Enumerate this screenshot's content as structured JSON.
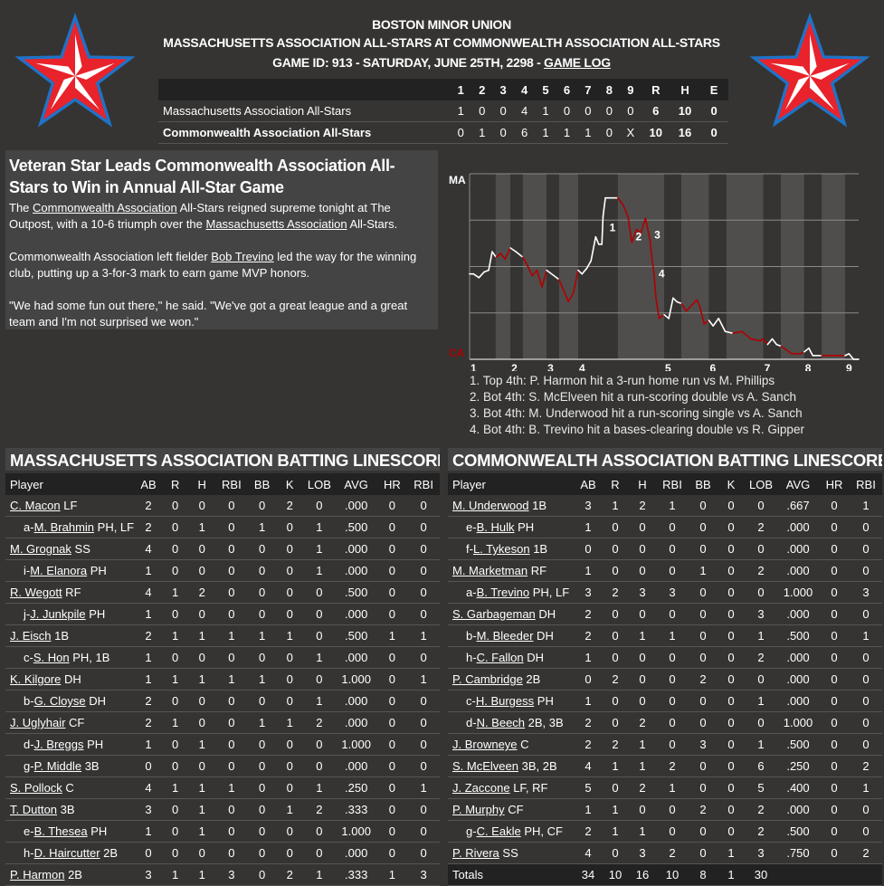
{
  "header": {
    "league": "BOSTON MINOR UNION",
    "matchup": "MASSACHUSETTS ASSOCIATION ALL-STARS AT COMMONWEALTH ASSOCIATION ALL-STARS",
    "game_info": "GAME ID: 913 - SATURDAY, JUNE 25TH, 2298 - ",
    "game_log_link": "GAME LOG"
  },
  "logo_colors": {
    "outline": "#1e73c8",
    "fill": "#e8232b",
    "highlight": "#ffffff"
  },
  "linescore": {
    "columns": [
      "1",
      "2",
      "3",
      "4",
      "5",
      "6",
      "7",
      "8",
      "9",
      "R",
      "H",
      "E"
    ],
    "rows": [
      {
        "team": "Massachusetts Association All-Stars",
        "innings": [
          "1",
          "0",
          "0",
          "4",
          "1",
          "0",
          "0",
          "0",
          "0"
        ],
        "r": "6",
        "h": "10",
        "e": "0"
      },
      {
        "team": "Commonwealth Association All-Stars",
        "innings": [
          "0",
          "1",
          "0",
          "6",
          "1",
          "1",
          "1",
          "0",
          "X"
        ],
        "r": "10",
        "h": "16",
        "e": "0"
      }
    ]
  },
  "article": {
    "headline": "Veteran Star Leads Commonwealth Association All-Stars to Win in Annual All-Star Game",
    "p1_a": "The ",
    "p1_link1": "Commonwealth Association",
    "p1_b": " All-Stars reigned supreme tonight at The Outpost, with a 10-6 triumph over the ",
    "p1_link2": "Massachusetts Association",
    "p1_c": " All-Stars.",
    "p2_a": "Commonwealth Association left fielder ",
    "p2_link": "Bob Trevino",
    "p2_b": " led the way for the winning club, putting up a 3-for-3 mark to earn game MVP honors.",
    "p3": "\"We had some fun out there,\" he said. \"We've got a great league and a great team and I'm not surprised we won.\""
  },
  "chart_data": {
    "type": "line",
    "top_label": "MA",
    "bottom_label": "CA",
    "colors": {
      "top_half": "#ffffff",
      "bottom_half": "#b00000",
      "top_label": "#ffffff",
      "bottom_label": "#b00000"
    },
    "ylim": [
      0,
      1
    ],
    "grid": true,
    "half_inning_boundaries": [
      0,
      6.7,
      10.5,
      13.7,
      19.8,
      23,
      27.9,
      38.1,
      50,
      54.4,
      61.5,
      66,
      75.5,
      80,
      86,
      90.5,
      96.5,
      100
    ],
    "inning_ticks": [
      {
        "label": "1",
        "x": 0
      },
      {
        "label": "2",
        "x": 10.5
      },
      {
        "label": "3",
        "x": 19.8
      },
      {
        "label": "4",
        "x": 27.9
      },
      {
        "label": "5",
        "x": 50
      },
      {
        "label": "6",
        "x": 61.5
      },
      {
        "label": "7",
        "x": 75.5
      },
      {
        "label": "8",
        "x": 86
      },
      {
        "label": "9",
        "x": 96.5
      }
    ],
    "points": [
      [
        0,
        0.46
      ],
      [
        1,
        0.46
      ],
      [
        2.4,
        0.44
      ],
      [
        3.7,
        0.47
      ],
      [
        4.9,
        0.48
      ],
      [
        5.8,
        0.58
      ],
      [
        6.8,
        0.55
      ],
      [
        8,
        0.57
      ],
      [
        9.1,
        0.54
      ],
      [
        10.5,
        0.6
      ],
      [
        11.9,
        0.58
      ],
      [
        13.7,
        0.55
      ],
      [
        15,
        0.5
      ],
      [
        16.1,
        0.45
      ],
      [
        17.3,
        0.48
      ],
      [
        18.6,
        0.39
      ],
      [
        19.8,
        0.48
      ],
      [
        23,
        0.43
      ],
      [
        25.4,
        0.31
      ],
      [
        26.7,
        0.36
      ],
      [
        27.9,
        0.48
      ],
      [
        28.9,
        0.46
      ],
      [
        30.1,
        0.49
      ],
      [
        31.2,
        0.53
      ],
      [
        32.4,
        0.66
      ],
      [
        33.2,
        0.62
      ],
      [
        34,
        0.62
      ],
      [
        34.3,
        0.77
      ],
      [
        34.9,
        0.87
      ],
      [
        36.3,
        0.87
      ],
      [
        38.1,
        0.87
      ],
      [
        39.5,
        0.83
      ],
      [
        40.7,
        0.77
      ],
      [
        41.7,
        0.63
      ],
      [
        42.9,
        0.7
      ],
      [
        44,
        0.68
      ],
      [
        45.2,
        0.76
      ],
      [
        46.4,
        0.64
      ],
      [
        46.7,
        0.57
      ],
      [
        47.4,
        0.46
      ],
      [
        47.9,
        0.33
      ],
      [
        48.7,
        0.22
      ],
      [
        50,
        0.24
      ],
      [
        51.2,
        0.22
      ],
      [
        52.3,
        0.33
      ],
      [
        53.3,
        0.31
      ],
      [
        54.5,
        0.3
      ],
      [
        55.7,
        0.26
      ],
      [
        58.4,
        0.32
      ],
      [
        59.1,
        0.29
      ],
      [
        60.3,
        0.19
      ],
      [
        61.5,
        0.21
      ],
      [
        62.6,
        0.18
      ],
      [
        64,
        0.22
      ],
      [
        65.7,
        0.15
      ],
      [
        67.7,
        0.14
      ],
      [
        70,
        0.15
      ],
      [
        72.3,
        0.11
      ],
      [
        74.7,
        0.1
      ],
      [
        75.4,
        0.11
      ],
      [
        76.6,
        0.08
      ],
      [
        77.8,
        0.11
      ],
      [
        78.9,
        0.08
      ],
      [
        80.1,
        0.07
      ],
      [
        82.8,
        0.03
      ],
      [
        85.1,
        0.03
      ],
      [
        86,
        0.04
      ],
      [
        87.2,
        0.06
      ],
      [
        88.2,
        0.02
      ],
      [
        90.5,
        0.02
      ],
      [
        96.5,
        0.02
      ],
      [
        97.5,
        0.03
      ],
      [
        98.7,
        0.0
      ],
      [
        100,
        0.0
      ]
    ],
    "annotations": [
      {
        "label": "1",
        "x": 35.5,
        "y": 0.71
      },
      {
        "label": "2",
        "x": 42.2,
        "y": 0.66
      },
      {
        "label": "3",
        "x": 47,
        "y": 0.67
      },
      {
        "label": "4",
        "x": 48.1,
        "y": 0.46
      }
    ],
    "notes": [
      "1. Top 4th: P. Harmon hit a 3-run home run vs M. Phillips",
      "2. Bot 4th: S. McElveen hit a run-scoring double vs A. Sanch",
      "3. Bot 4th: M. Underwood hit a run-scoring single vs A. Sanch",
      "4. Bot 4th: B. Trevino hit a bases-clearing double vs R. Gipper"
    ]
  },
  "batting": {
    "columns": [
      "Player",
      "AB",
      "R",
      "H",
      "RBI",
      "BB",
      "K",
      "LOB",
      "AVG",
      "HR",
      "RBI"
    ],
    "away": {
      "title": "MASSACHUSETTS ASSOCIATION BATTING LINESCORE",
      "rows": [
        {
          "prefix": "",
          "name": "C. Macon",
          "pos": "LF",
          "stats": [
            "2",
            "0",
            "0",
            "0",
            "0",
            "2",
            "0",
            ".000",
            "0",
            "0"
          ]
        },
        {
          "prefix": "a-",
          "name": "M. Brahmin",
          "pos": "PH, LF",
          "stats": [
            "2",
            "0",
            "1",
            "0",
            "1",
            "0",
            "1",
            ".500",
            "0",
            "0"
          ]
        },
        {
          "prefix": "",
          "name": "M. Grognak",
          "pos": "SS",
          "stats": [
            "4",
            "0",
            "0",
            "0",
            "0",
            "0",
            "1",
            ".000",
            "0",
            "0"
          ]
        },
        {
          "prefix": "i-",
          "name": "M. Elanora",
          "pos": "PH",
          "stats": [
            "1",
            "0",
            "0",
            "0",
            "0",
            "0",
            "1",
            ".000",
            "0",
            "0"
          ]
        },
        {
          "prefix": "",
          "name": "R. Wegott",
          "pos": "RF",
          "stats": [
            "4",
            "1",
            "2",
            "0",
            "0",
            "0",
            "0",
            ".500",
            "0",
            "0"
          ]
        },
        {
          "prefix": "j-",
          "name": "J. Junkpile",
          "pos": "PH",
          "stats": [
            "1",
            "0",
            "0",
            "0",
            "0",
            "0",
            "0",
            ".000",
            "0",
            "0"
          ]
        },
        {
          "prefix": "",
          "name": "J. Eisch",
          "pos": "1B",
          "stats": [
            "2",
            "1",
            "1",
            "1",
            "1",
            "1",
            "0",
            ".500",
            "1",
            "1"
          ]
        },
        {
          "prefix": "c-",
          "name": "S. Hon",
          "pos": "PH, 1B",
          "stats": [
            "1",
            "0",
            "0",
            "0",
            "0",
            "0",
            "1",
            ".000",
            "0",
            "0"
          ]
        },
        {
          "prefix": "",
          "name": "K. Kilgore",
          "pos": "DH",
          "stats": [
            "1",
            "1",
            "1",
            "1",
            "1",
            "0",
            "0",
            "1.000",
            "0",
            "1"
          ]
        },
        {
          "prefix": "b-",
          "name": "G. Cloyse",
          "pos": "DH",
          "stats": [
            "2",
            "0",
            "0",
            "0",
            "0",
            "0",
            "1",
            ".000",
            "0",
            "0"
          ]
        },
        {
          "prefix": "",
          "name": "J. Uglyhair",
          "pos": "CF",
          "stats": [
            "2",
            "1",
            "0",
            "0",
            "1",
            "1",
            "2",
            ".000",
            "0",
            "0"
          ]
        },
        {
          "prefix": "d-",
          "name": "J. Breggs",
          "pos": "PH",
          "stats": [
            "1",
            "0",
            "1",
            "0",
            "0",
            "0",
            "0",
            "1.000",
            "0",
            "0"
          ]
        },
        {
          "prefix": "g-",
          "name": "P. Middle",
          "pos": "3B",
          "stats": [
            "0",
            "0",
            "0",
            "0",
            "0",
            "0",
            "0",
            ".000",
            "0",
            "0"
          ]
        },
        {
          "prefix": "",
          "name": "S. Pollock",
          "pos": "C",
          "stats": [
            "4",
            "1",
            "1",
            "1",
            "0",
            "0",
            "1",
            ".250",
            "0",
            "1"
          ]
        },
        {
          "prefix": "",
          "name": "T. Dutton",
          "pos": "3B",
          "stats": [
            "3",
            "0",
            "1",
            "0",
            "0",
            "1",
            "2",
            ".333",
            "0",
            "0"
          ]
        },
        {
          "prefix": "e-",
          "name": "B. Thesea",
          "pos": "PH",
          "stats": [
            "1",
            "0",
            "1",
            "0",
            "0",
            "0",
            "0",
            "1.000",
            "0",
            "0"
          ]
        },
        {
          "prefix": "h-",
          "name": "D. Haircutter",
          "pos": "2B",
          "stats": [
            "0",
            "0",
            "0",
            "0",
            "0",
            "0",
            "0",
            ".000",
            "0",
            "0"
          ]
        },
        {
          "prefix": "",
          "name": "P. Harmon",
          "pos": "2B",
          "stats": [
            "3",
            "1",
            "1",
            "3",
            "0",
            "2",
            "1",
            ".333",
            "1",
            "3"
          ]
        }
      ]
    },
    "home": {
      "title": "COMMONWEALTH ASSOCIATION BATTING LINESCORE",
      "rows": [
        {
          "prefix": "",
          "name": "M. Underwood",
          "pos": "1B",
          "stats": [
            "3",
            "1",
            "2",
            "1",
            "0",
            "0",
            "0",
            ".667",
            "0",
            "1"
          ]
        },
        {
          "prefix": "e-",
          "name": "B. Hulk",
          "pos": "PH",
          "stats": [
            "1",
            "0",
            "0",
            "0",
            "0",
            "0",
            "2",
            ".000",
            "0",
            "0"
          ]
        },
        {
          "prefix": "f-",
          "name": "L. Tykeson",
          "pos": "1B",
          "stats": [
            "0",
            "0",
            "0",
            "0",
            "0",
            "0",
            "0",
            ".000",
            "0",
            "0"
          ]
        },
        {
          "prefix": "",
          "name": "M. Marketman",
          "pos": "RF",
          "stats": [
            "1",
            "0",
            "0",
            "0",
            "1",
            "0",
            "2",
            ".000",
            "0",
            "0"
          ]
        },
        {
          "prefix": "a-",
          "name": "B. Trevino",
          "pos": "PH, LF",
          "stats": [
            "3",
            "2",
            "3",
            "3",
            "0",
            "0",
            "0",
            "1.000",
            "0",
            "3"
          ]
        },
        {
          "prefix": "",
          "name": "S. Garbageman",
          "pos": "DH",
          "stats": [
            "2",
            "0",
            "0",
            "0",
            "0",
            "0",
            "3",
            ".000",
            "0",
            "0"
          ]
        },
        {
          "prefix": "b-",
          "name": "M. Bleeder",
          "pos": "DH",
          "stats": [
            "2",
            "0",
            "1",
            "1",
            "0",
            "0",
            "1",
            ".500",
            "0",
            "1"
          ]
        },
        {
          "prefix": "h-",
          "name": "C. Fallon",
          "pos": "DH",
          "stats": [
            "1",
            "0",
            "0",
            "0",
            "0",
            "0",
            "2",
            ".000",
            "0",
            "0"
          ]
        },
        {
          "prefix": "",
          "name": "P. Cambridge",
          "pos": "2B",
          "stats": [
            "0",
            "2",
            "0",
            "0",
            "2",
            "0",
            "0",
            ".000",
            "0",
            "0"
          ]
        },
        {
          "prefix": "c-",
          "name": "H. Burgess",
          "pos": "PH",
          "stats": [
            "1",
            "0",
            "0",
            "0",
            "0",
            "0",
            "1",
            ".000",
            "0",
            "0"
          ]
        },
        {
          "prefix": "d-",
          "name": "N. Beech",
          "pos": "2B, 3B",
          "stats": [
            "2",
            "0",
            "2",
            "0",
            "0",
            "0",
            "0",
            "1.000",
            "0",
            "0"
          ]
        },
        {
          "prefix": "",
          "name": "J. Browneye",
          "pos": "C",
          "stats": [
            "2",
            "2",
            "1",
            "0",
            "3",
            "0",
            "1",
            ".500",
            "0",
            "0"
          ]
        },
        {
          "prefix": "",
          "name": "S. McElveen",
          "pos": "3B, 2B",
          "stats": [
            "4",
            "1",
            "1",
            "2",
            "0",
            "0",
            "6",
            ".250",
            "0",
            "2"
          ]
        },
        {
          "prefix": "",
          "name": "J. Zaccone",
          "pos": "LF, RF",
          "stats": [
            "5",
            "0",
            "2",
            "1",
            "0",
            "0",
            "5",
            ".400",
            "0",
            "1"
          ]
        },
        {
          "prefix": "",
          "name": "P. Murphy",
          "pos": "CF",
          "stats": [
            "1",
            "1",
            "0",
            "0",
            "2",
            "0",
            "2",
            ".000",
            "0",
            "0"
          ]
        },
        {
          "prefix": "g-",
          "name": "C. Eakle",
          "pos": "PH, CF",
          "stats": [
            "2",
            "1",
            "1",
            "0",
            "0",
            "0",
            "2",
            ".500",
            "0",
            "0"
          ]
        },
        {
          "prefix": "",
          "name": "P. Rivera",
          "pos": "SS",
          "stats": [
            "4",
            "0",
            "3",
            "2",
            "0",
            "1",
            "3",
            ".750",
            "0",
            "2"
          ]
        }
      ],
      "totals": {
        "label": "Totals",
        "stats": [
          "34",
          "10",
          "16",
          "10",
          "8",
          "1",
          "30",
          "",
          "",
          ""
        ]
      }
    }
  }
}
